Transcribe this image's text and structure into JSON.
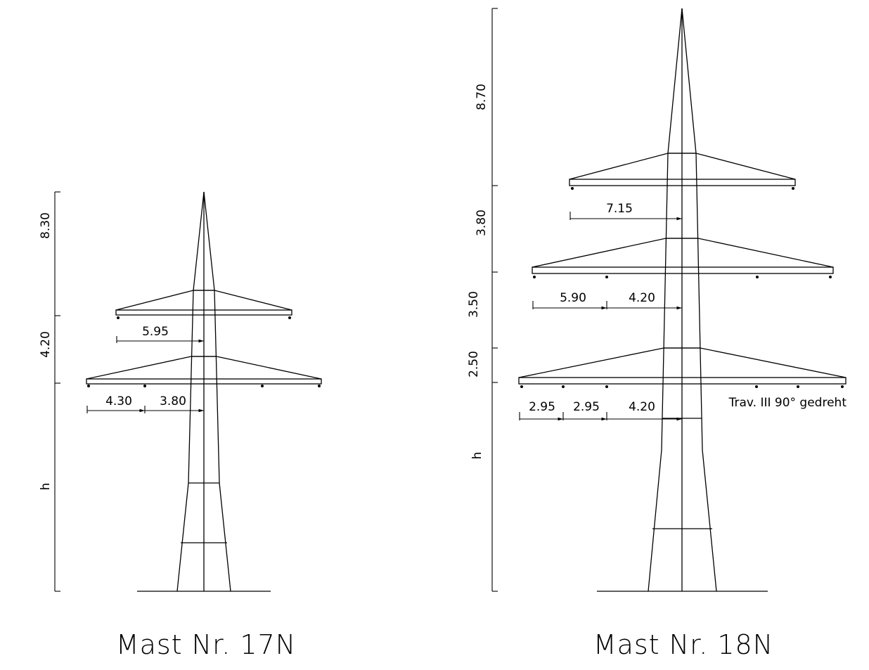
{
  "masts": [
    {
      "id": "17N",
      "title": "Mast Nr. 17N",
      "height_dims": [
        "8.30",
        "4.20",
        "h"
      ],
      "crossarm_dims": {
        "upper": [
          "5.95"
        ],
        "lower": [
          "4.30",
          "3.80"
        ]
      }
    },
    {
      "id": "18N",
      "title": "Mast Nr. 18N",
      "height_dims": [
        "8.70",
        "3.80",
        "3.50",
        "2.50",
        "h"
      ],
      "crossarm_dims": {
        "upper": [
          "7.15"
        ],
        "middle": [
          "5.90",
          "4.20"
        ],
        "lower": [
          "2.95",
          "2.95",
          "4.20"
        ]
      },
      "note": "Trav. III 90° gedreht"
    }
  ]
}
